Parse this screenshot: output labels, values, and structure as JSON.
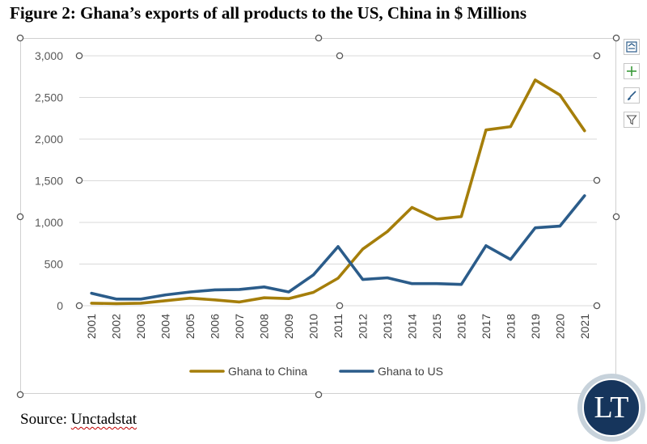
{
  "figure": {
    "title": "Figure 2: Ghana’s exports of all products to the US, China in $ Millions",
    "source_prefix": "Source: ",
    "source_name": "Unctadstat"
  },
  "logo": {
    "text": "LT",
    "colors": {
      "ring": "#c7d2db",
      "fill": "#16355c"
    }
  },
  "side_buttons": [
    "chart-elements-icon",
    "add-icon",
    "brush-style-icon",
    "filter-icon"
  ],
  "chart_data": {
    "type": "line",
    "title": "",
    "xlabel": "",
    "ylabel": "",
    "categories": [
      "2001",
      "2002",
      "2003",
      "2004",
      "2005",
      "2006",
      "2007",
      "2008",
      "2009",
      "2010",
      "2011",
      "2012",
      "2013",
      "2014",
      "2015",
      "2016",
      "2017",
      "2018",
      "2019",
      "2020",
      "2021"
    ],
    "ylim": [
      0,
      3000
    ],
    "yticks": [
      0,
      500,
      1000,
      1500,
      2000,
      2500,
      3000
    ],
    "ytick_labels": [
      "0",
      "500",
      "1,000",
      "1,500",
      "2,000",
      "2,500",
      "3,000"
    ],
    "grid": true,
    "legend_position": "bottom",
    "series": [
      {
        "name": "Ghana to China",
        "color": "#a57e0a",
        "values": [
          30,
          25,
          30,
          60,
          90,
          70,
          45,
          95,
          85,
          160,
          330,
          680,
          890,
          1180,
          1040,
          1070,
          2110,
          2150,
          2710,
          2530,
          2100
        ]
      },
      {
        "name": "Ghana to US",
        "color": "#2b5c8a",
        "values": [
          150,
          80,
          80,
          130,
          165,
          190,
          195,
          225,
          165,
          370,
          710,
          315,
          335,
          265,
          265,
          255,
          720,
          555,
          935,
          955,
          1320
        ]
      }
    ]
  }
}
